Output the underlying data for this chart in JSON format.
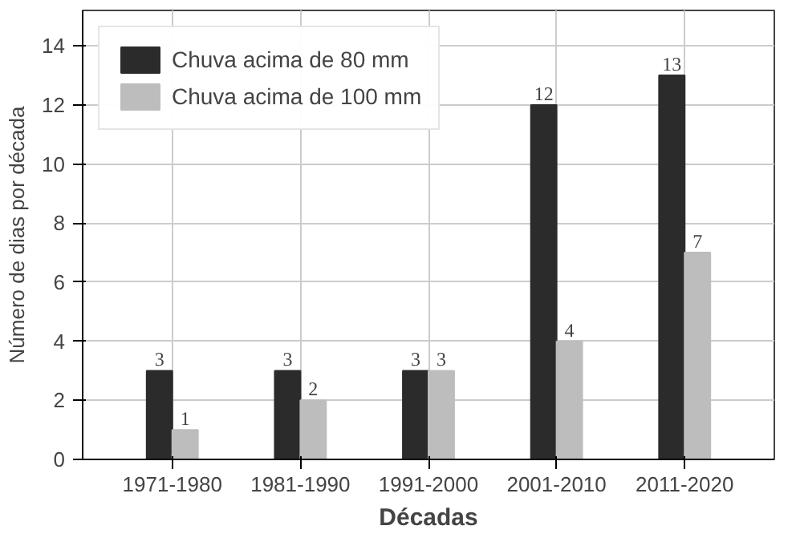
{
  "chart_data": {
    "type": "bar",
    "xlabel": "Décadas",
    "ylabel": "Número de dias por década",
    "categories": [
      "1971-1980",
      "1981-1990",
      "1991-2000",
      "2001-2010",
      "2011-2020"
    ],
    "series": [
      {
        "name": "Chuva acima de 80 mm",
        "color": "#2b2b2b",
        "values": [
          3,
          3,
          3,
          12,
          13
        ]
      },
      {
        "name": "Chuva acima de 100 mm",
        "color": "#bdbdbd",
        "values": [
          1,
          2,
          3,
          4,
          7
        ]
      }
    ],
    "ylim": [
      0,
      15.2
    ],
    "yticks": [
      0,
      2,
      4,
      6,
      8,
      10,
      12,
      14
    ],
    "grid": true,
    "legend": "top left",
    "data_labels": true
  }
}
